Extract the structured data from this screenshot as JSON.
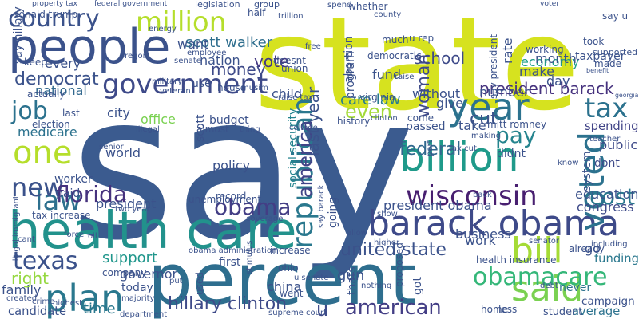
{
  "words": [
    {
      "text": "say",
      "color": "#3b5b8f"
    },
    {
      "text": "state",
      "color": "#d6e21f"
    },
    {
      "text": "percent",
      "color": "#2e6e8e"
    },
    {
      "text": "health care",
      "color": "#22928c"
    },
    {
      "text": "people",
      "color": "#3b528b"
    },
    {
      "text": "barack obama",
      "color": "#3e4a89"
    },
    {
      "text": "billion",
      "color": "#1f9a8a"
    },
    {
      "text": "year",
      "color": "#2c728e"
    },
    {
      "text": "government",
      "color": "#3e4a89"
    },
    {
      "text": "million",
      "color": "#b5de2b"
    },
    {
      "text": "country",
      "color": "#3b528b"
    },
    {
      "text": "wisconsin",
      "color": "#481f70"
    },
    {
      "text": "voted",
      "color": "#2c728e"
    },
    {
      "text": "republican",
      "color": "#2a788e"
    },
    {
      "text": "said",
      "color": "#7ad151"
    },
    {
      "text": "bill",
      "color": "#a5db36"
    },
    {
      "text": "one",
      "color": "#b5de2b"
    },
    {
      "text": "obamacare",
      "color": "#35b779"
    },
    {
      "text": "plan",
      "color": "#2a788e"
    },
    {
      "text": "american",
      "color": "#433e85"
    },
    {
      "text": "texas",
      "color": "#3b528b"
    },
    {
      "text": "law",
      "color": "#2d708e"
    },
    {
      "text": "tax",
      "color": "#2c728e"
    },
    {
      "text": "cost",
      "color": "#2a788e"
    },
    {
      "text": "obama",
      "color": "#433e85"
    },
    {
      "text": "new",
      "color": "#3b528b"
    },
    {
      "text": "florida",
      "color": "#46327e"
    },
    {
      "text": "job",
      "color": "#2c728e"
    },
    {
      "text": "pay",
      "color": "#25848e"
    },
    {
      "text": "hillary clinton",
      "color": "#3e4a89"
    },
    {
      "text": "united state",
      "color": "#3b528b"
    },
    {
      "text": "president barack",
      "color": "#46327e"
    },
    {
      "text": "school",
      "color": "#3e4a89"
    },
    {
      "text": "vote",
      "color": "#443983"
    },
    {
      "text": "money",
      "color": "#3e4a89"
    },
    {
      "text": "democrat",
      "color": "#3b528b"
    },
    {
      "text": "scott walker",
      "color": "#2e6e8e"
    },
    {
      "text": "woman",
      "color": "#3e4a89"
    },
    {
      "text": "america",
      "color": "#414487"
    },
    {
      "text": "federal",
      "color": "#31688e"
    },
    {
      "text": "cut",
      "color": "#3b528b"
    },
    {
      "text": "even",
      "color": "#a2da37"
    },
    {
      "text": "right",
      "color": "#95d840"
    },
    {
      "text": "support",
      "color": "#1f968b"
    },
    {
      "text": "time",
      "color": "#2a788e"
    },
    {
      "text": "u",
      "color": "#3e4a89"
    },
    {
      "text": "care law",
      "color": "#287c8e"
    },
    {
      "text": "last year",
      "color": "#3b528b"
    },
    {
      "text": "social security",
      "color": "#25848e"
    },
    {
      "text": "medicare",
      "color": "#2c728e"
    },
    {
      "text": "every",
      "color": "#3b528b"
    },
    {
      "text": "national",
      "color": "#31688e"
    },
    {
      "text": "economy",
      "color": "#1f9e89"
    },
    {
      "text": "spending",
      "color": "#414487"
    },
    {
      "text": "public",
      "color": "#3e4a89"
    },
    {
      "text": "dont",
      "color": "#3e4a89"
    },
    {
      "text": "education",
      "color": "#3b528b"
    },
    {
      "text": "congress",
      "color": "#3e4a89"
    },
    {
      "text": "campaign",
      "color": "#3b528b"
    },
    {
      "text": "average",
      "color": "#2c728e"
    },
    {
      "text": "student",
      "color": "#3b528b"
    },
    {
      "text": "funding",
      "color": "#2a788e"
    },
    {
      "text": "never",
      "color": "#2c728e"
    },
    {
      "text": "governor",
      "color": "#3b528b"
    },
    {
      "text": "today",
      "color": "#3b528b"
    },
    {
      "text": "china",
      "color": "#3b528b"
    },
    {
      "text": "first",
      "color": "#3b528b"
    },
    {
      "text": "policy",
      "color": "#3b528b"
    },
    {
      "text": "office",
      "color": "#7ad151"
    },
    {
      "text": "budget",
      "color": "#3b528b"
    },
    {
      "text": "city",
      "color": "#3b528b"
    },
    {
      "text": "scott",
      "color": "#3b528b"
    },
    {
      "text": "world",
      "color": "#3b528b"
    },
    {
      "text": "worker",
      "color": "#3b528b"
    },
    {
      "text": "paid",
      "color": "#3b528b"
    },
    {
      "text": "president",
      "color": "#3b528b"
    },
    {
      "text": "family",
      "color": "#3b528b"
    },
    {
      "text": "candidate",
      "color": "#3b528b"
    },
    {
      "text": "company",
      "color": "#3b528b"
    },
    {
      "text": "gun",
      "color": "#3b528b"
    },
    {
      "text": "went",
      "color": "#3b528b"
    },
    {
      "text": "thats",
      "color": "#3b528b"
    },
    {
      "text": "got",
      "color": "#3b528b"
    },
    {
      "text": "mitt romney",
      "color": "#3b528b"
    },
    {
      "text": "take",
      "color": "#3b528b"
    },
    {
      "text": "passed",
      "color": "#3b528b"
    },
    {
      "text": "didnt",
      "color": "#3b528b"
    },
    {
      "text": "business",
      "color": "#3b528b"
    },
    {
      "text": "work",
      "color": "#3b528b"
    },
    {
      "text": "go",
      "color": "#3b528b"
    },
    {
      "text": "child",
      "color": "#3b528b"
    },
    {
      "text": "nation",
      "color": "#3b528b"
    },
    {
      "text": "want",
      "color": "#3b528b"
    },
    {
      "text": "house",
      "color": "#3b528b"
    },
    {
      "text": "use",
      "color": "#3b528b"
    },
    {
      "text": "fund",
      "color": "#3b528b"
    },
    {
      "text": "number",
      "color": "#3b528b"
    },
    {
      "text": "day",
      "color": "#3b528b"
    },
    {
      "text": "make",
      "color": "#3b528b"
    },
    {
      "text": "month",
      "color": "#3b528b"
    },
    {
      "text": "rate",
      "color": "#3b528b"
    },
    {
      "text": "taxpayer",
      "color": "#3b528b"
    },
    {
      "text": "took",
      "color": "#3b528b"
    },
    {
      "text": "give",
      "color": "#3b528b"
    },
    {
      "text": "without",
      "color": "#3b528b"
    },
    {
      "text": "come",
      "color": "#3b528b"
    },
    {
      "text": "program",
      "color": "#3b528b"
    },
    {
      "text": "abortion",
      "color": "#3b528b"
    },
    {
      "text": "president obama",
      "color": "#3b528b"
    },
    {
      "text": "say president",
      "color": "#3b528b"
    },
    {
      "text": "system",
      "color": "#3b528b"
    },
    {
      "text": "going",
      "color": "#3b528b"
    },
    {
      "text": "u rep",
      "color": "#3b528b"
    },
    {
      "text": "much",
      "color": "#3b528b"
    },
    {
      "text": "democratic",
      "color": "#3b528b"
    },
    {
      "text": "supported",
      "color": "#3b528b"
    },
    {
      "text": "working",
      "color": "#3b528b"
    },
    {
      "text": "keep",
      "color": "#3b528b"
    },
    {
      "text": "actually",
      "color": "#3b528b"
    },
    {
      "text": "last",
      "color": "#3b528b"
    },
    {
      "text": "election",
      "color": "#3b528b"
    },
    {
      "text": "tax increase",
      "color": "#3b528b"
    },
    {
      "text": "say hillary",
      "color": "#3b528b"
    },
    {
      "text": "illegal immigrant",
      "color": "#3b528b"
    },
    {
      "text": "donald trump",
      "color": "#3b528b"
    },
    {
      "text": "property tax",
      "color": "#3b528b"
    },
    {
      "text": "federal government",
      "color": "#3b528b"
    },
    {
      "text": "legislation",
      "color": "#3b528b"
    },
    {
      "text": "group",
      "color": "#3b528b"
    },
    {
      "text": "half",
      "color": "#3b528b"
    },
    {
      "text": "military",
      "color": "#3b528b"
    },
    {
      "text": "doesnt",
      "color": "#3b528b"
    },
    {
      "text": "union",
      "color": "#3b528b"
    },
    {
      "text": "record",
      "color": "#3b528b"
    },
    {
      "text": "almost",
      "color": "#3b528b"
    },
    {
      "text": "unemployment",
      "color": "#3b528b"
    },
    {
      "text": "increase",
      "color": "#3b528b"
    },
    {
      "text": "ohio",
      "color": "#3b528b"
    },
    {
      "text": "virginia",
      "color": "#3b528b"
    },
    {
      "text": "history",
      "color": "#3b528b"
    },
    {
      "text": "health insurance",
      "color": "#3b528b"
    },
    {
      "text": "already",
      "color": "#3b528b"
    },
    {
      "text": "two year",
      "color": "#3b528b"
    },
    {
      "text": "cant",
      "color": "#3b528b"
    },
    {
      "text": "highest",
      "color": "#3b528b"
    },
    {
      "text": "majority",
      "color": "#3b528b"
    },
    {
      "text": "obama administration",
      "color": "#3b528b"
    },
    {
      "text": "supreme court",
      "color": "#3b528b"
    },
    {
      "text": "less",
      "color": "#3b528b"
    },
    {
      "text": "home",
      "color": "#3b528b"
    },
    {
      "text": "debt",
      "color": "#3b528b"
    },
    {
      "text": "nothing",
      "color": "#3b528b"
    },
    {
      "text": "u senate",
      "color": "#3b528b"
    },
    {
      "text": "show",
      "color": "#3b528b"
    },
    {
      "text": "higher",
      "color": "#3b528b"
    },
    {
      "text": "senator",
      "color": "#3b528b"
    },
    {
      "text": "including",
      "color": "#3b528b"
    },
    {
      "text": "georgia",
      "color": "#3b528b"
    },
    {
      "text": "benefit",
      "color": "#3b528b"
    },
    {
      "text": "teacher",
      "color": "#3b528b"
    },
    {
      "text": "made",
      "color": "#3b528b"
    },
    {
      "text": "know",
      "color": "#3b528b"
    },
    {
      "text": "back",
      "color": "#3b528b"
    },
    {
      "text": "clinton",
      "color": "#3b528b"
    },
    {
      "text": "college",
      "color": "#3b528b"
    },
    {
      "text": "raise tax",
      "color": "#3b528b"
    },
    {
      "text": "illegal",
      "color": "#3b528b"
    },
    {
      "text": "thing",
      "color": "#3b528b"
    },
    {
      "text": "coverage",
      "color": "#3b528b"
    },
    {
      "text": "senior",
      "color": "#3b528b"
    },
    {
      "text": "force",
      "color": "#3b528b"
    },
    {
      "text": "oil",
      "color": "#3b528b"
    },
    {
      "text": "created",
      "color": "#3b528b"
    },
    {
      "text": "crime",
      "color": "#3b528b"
    },
    {
      "text": "put",
      "color": "#3b528b"
    },
    {
      "text": "employee",
      "color": "#3b528b"
    },
    {
      "text": "energy",
      "color": "#3b528b"
    },
    {
      "text": "oregon",
      "color": "#3b528b"
    },
    {
      "text": "senate",
      "color": "#3b528b"
    },
    {
      "text": "trillion",
      "color": "#3b528b"
    },
    {
      "text": "spend",
      "color": "#3b528b"
    },
    {
      "text": "whether",
      "color": "#3b528b"
    },
    {
      "text": "county",
      "color": "#3b528b"
    },
    {
      "text": "voter",
      "color": "#3b528b"
    },
    {
      "text": "say u",
      "color": "#3b528b"
    },
    {
      "text": "free",
      "color": "#3b528b"
    },
    {
      "text": "raise",
      "color": "#3b528b"
    },
    {
      "text": "musim",
      "color": "#3b528b"
    },
    {
      "text": "veteran",
      "color": "#3b528b"
    },
    {
      "text": "part",
      "color": "#3b528b"
    },
    {
      "text": "making",
      "color": "#3b528b"
    },
    {
      "text": "tax cut",
      "color": "#3b528b"
    },
    {
      "text": "say barack",
      "color": "#3b528b"
    },
    {
      "text": "allow",
      "color": "#3b528b"
    },
    {
      "text": "proposed",
      "color": "#3b528b"
    },
    {
      "text": "stimulus",
      "color": "#3b528b"
    },
    {
      "text": "used",
      "color": "#3b528b"
    },
    {
      "text": "department",
      "color": "#3b528b"
    }
  ]
}
